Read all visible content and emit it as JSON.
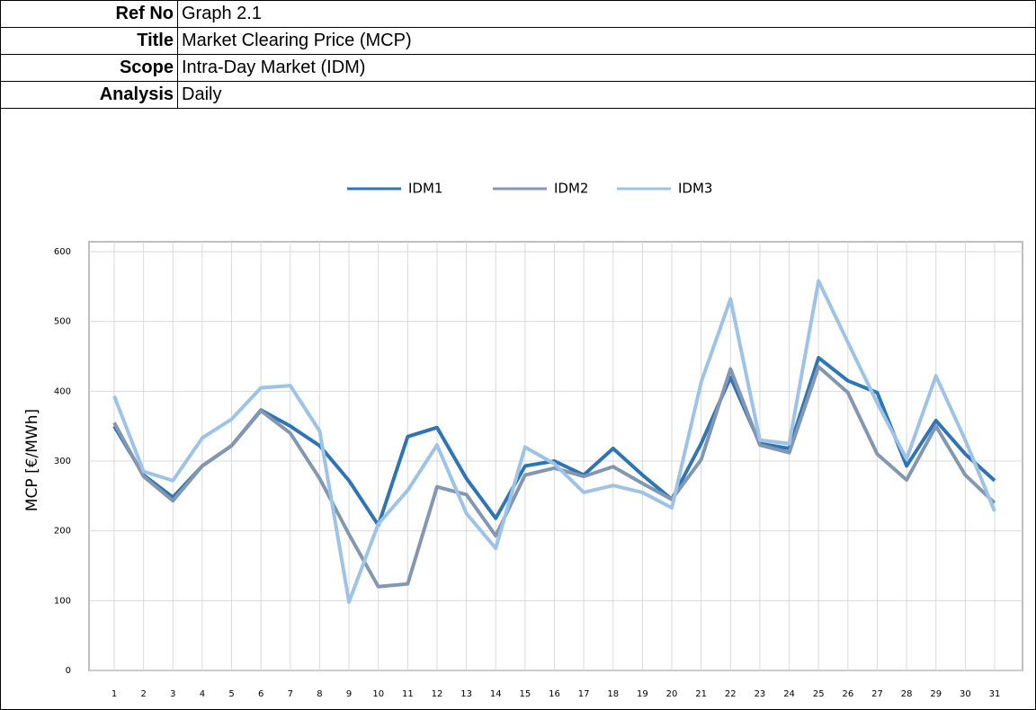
{
  "header": {
    "rows": [
      [
        "Ref No",
        "Graph 2.1"
      ],
      [
        "Title",
        "Market Clearing Price (MCP)"
      ],
      [
        "Scope",
        "Intra-Day Market (IDM)"
      ],
      [
        "Analysis",
        "Daily"
      ]
    ]
  },
  "chart_data": {
    "type": "line",
    "y_label": "MCP [€/MWh]",
    "categories": [
      "1",
      "2",
      "3",
      "4",
      "5",
      "6",
      "7",
      "8",
      "9",
      "10",
      "11",
      "12",
      "13",
      "14",
      "15",
      "16",
      "17",
      "18",
      "19",
      "20",
      "21",
      "22",
      "23",
      "24",
      "25",
      "26",
      "27",
      "28",
      "29",
      "30",
      "31"
    ],
    "series": [
      {
        "name": "IDM1",
        "color": "#2e75b6",
        "values": [
          350,
          280,
          248,
          293,
          322,
          373,
          350,
          322,
          272,
          208,
          335,
          348,
          275,
          218,
          293,
          300,
          280,
          318,
          280,
          245,
          325,
          420,
          325,
          318,
          448,
          415,
          398,
          293,
          358,
          310,
          272
        ]
      },
      {
        "name": "IDM2",
        "color": "#8497b0",
        "values": [
          355,
          278,
          243,
          293,
          322,
          372,
          340,
          275,
          195,
          120,
          124,
          263,
          252,
          193,
          280,
          290,
          278,
          292,
          268,
          245,
          302,
          432,
          323,
          312,
          435,
          398,
          310,
          273,
          350,
          280,
          240
        ]
      },
      {
        "name": "IDM3",
        "color": "#9dc3e6",
        "values": [
          393,
          285,
          272,
          333,
          360,
          405,
          408,
          343,
          98,
          210,
          258,
          323,
          225,
          175,
          320,
          296,
          255,
          265,
          255,
          233,
          413,
          532,
          330,
          325,
          558,
          470,
          383,
          303,
          422,
          330,
          228
        ]
      }
    ],
    "ylim": [
      0,
      600
    ],
    "yticks": [
      0,
      100,
      200,
      300,
      400,
      500,
      600
    ],
    "grid": true,
    "legend": "top"
  }
}
